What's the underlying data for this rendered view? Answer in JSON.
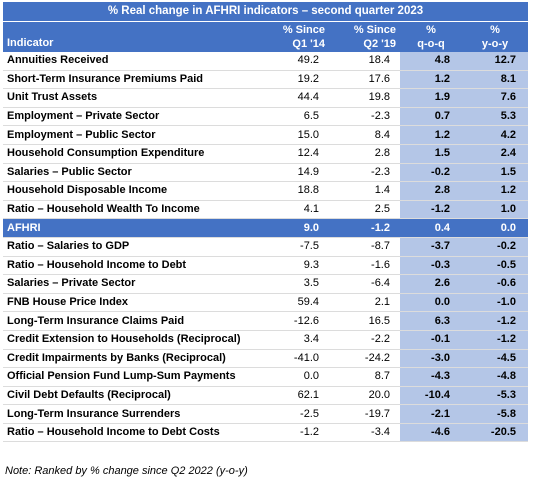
{
  "table": {
    "title": "% Real change in AFHRI indicators – second quarter 2023",
    "headers": {
      "indicator": "Indicator",
      "c1_line1": "% Since",
      "c1_line2": "Q1 '14",
      "c2_line1": "% Since",
      "c2_line2": "Q2 '19",
      "c3_line1": "%",
      "c3_line2": "q-o-q",
      "c4_line1": "%",
      "c4_line2": "y-o-y"
    },
    "rows": [
      {
        "name": "Annuities Received",
        "q1_14": "49.2",
        "q2_19": "18.4",
        "qoq": "4.8",
        "yoy": "12.7"
      },
      {
        "name": "Short-Term Insurance Premiums Paid",
        "q1_14": "19.2",
        "q2_19": "17.6",
        "qoq": "1.2",
        "yoy": "8.1"
      },
      {
        "name": "Unit Trust Assets",
        "q1_14": "44.4",
        "q2_19": "19.8",
        "qoq": "1.9",
        "yoy": "7.6"
      },
      {
        "name": "Employment – Private Sector",
        "q1_14": "6.5",
        "q2_19": "-2.3",
        "qoq": "0.7",
        "yoy": "5.3"
      },
      {
        "name": "Employment – Public Sector",
        "q1_14": "15.0",
        "q2_19": "8.4",
        "qoq": "1.2",
        "yoy": "4.2"
      },
      {
        "name": "Household Consumption Expenditure",
        "q1_14": "12.4",
        "q2_19": "2.8",
        "qoq": "1.5",
        "yoy": "2.4"
      },
      {
        "name": "Salaries – Public Sector",
        "q1_14": "14.9",
        "q2_19": "-2.3",
        "qoq": "-0.2",
        "yoy": "1.5"
      },
      {
        "name": "Household Disposable Income",
        "q1_14": "18.8",
        "q2_19": "1.4",
        "qoq": "2.8",
        "yoy": "1.2"
      },
      {
        "name": "Ratio – Household Wealth To Income",
        "q1_14": "4.1",
        "q2_19": "2.5",
        "qoq": "-1.2",
        "yoy": "1.0"
      },
      {
        "name": "AFHRI",
        "q1_14": "9.0",
        "q2_19": "-1.2",
        "qoq": "0.4",
        "yoy": "0.0"
      },
      {
        "name": "Ratio – Salaries to GDP",
        "q1_14": "-7.5",
        "q2_19": "-8.7",
        "qoq": "-3.7",
        "yoy": "-0.2"
      },
      {
        "name": "Ratio – Household Income to Debt",
        "q1_14": "9.3",
        "q2_19": "-1.6",
        "qoq": "-0.3",
        "yoy": "-0.5"
      },
      {
        "name": "Salaries – Private Sector",
        "q1_14": "3.5",
        "q2_19": "-6.4",
        "qoq": "2.6",
        "yoy": "-0.6"
      },
      {
        "name": "FNB House Price Index",
        "q1_14": "59.4",
        "q2_19": "2.1",
        "qoq": "0.0",
        "yoy": "-1.0"
      },
      {
        "name": "Long-Term Insurance Claims Paid",
        "q1_14": "-12.6",
        "q2_19": "16.5",
        "qoq": "6.3",
        "yoy": "-1.2"
      },
      {
        "name": "Credit Extension to Households (Reciprocal)",
        "q1_14": "3.4",
        "q2_19": "-2.2",
        "qoq": "-0.1",
        "yoy": "-1.2"
      },
      {
        "name": "Credit Impairments by Banks (Reciprocal)",
        "q1_14": "-41.0",
        "q2_19": "-24.2",
        "qoq": "-3.0",
        "yoy": "-4.5"
      },
      {
        "name": "Official Pension Fund Lump-Sum Payments",
        "q1_14": "0.0",
        "q2_19": "8.7",
        "qoq": "-4.3",
        "yoy": "-4.8"
      },
      {
        "name": "Civil Debt Defaults (Reciprocal)",
        "q1_14": "62.1",
        "q2_19": "20.0",
        "qoq": "-10.4",
        "yoy": "-5.3"
      },
      {
        "name": "Long-Term Insurance Surrenders",
        "q1_14": "-2.5",
        "q2_19": "-19.7",
        "qoq": "-2.1",
        "yoy": "-5.8"
      },
      {
        "name": "Ratio – Household Income to Debt Costs",
        "q1_14": "-1.2",
        "q2_19": "-3.4",
        "qoq": "-4.6",
        "yoy": "-20.5"
      }
    ],
    "highlight_index": 9,
    "note": "Note: Ranked by % change since Q2 2022 (y-o-y)"
  },
  "colors": {
    "header_bg": "#4472c4",
    "header_text": "#ffffff",
    "shaded_column_bg": "#b4c6e7"
  }
}
